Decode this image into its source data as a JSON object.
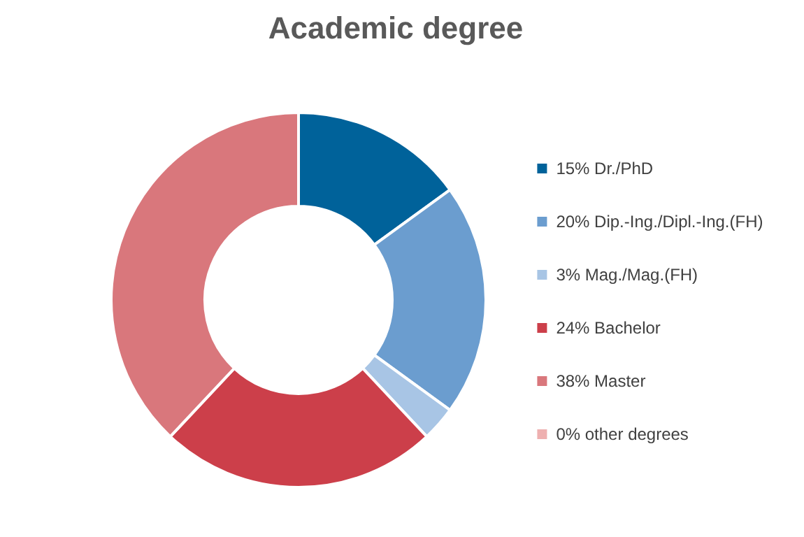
{
  "chart_data": {
    "type": "donut",
    "title": "Academic degree",
    "categories": [
      "Dr./PhD",
      "Dip.-Ing./Dipl.-Ing.(FH)",
      "Mag./Mag.(FH)",
      "Bachelor",
      "Master",
      "other degrees"
    ],
    "values": [
      15,
      20,
      3,
      24,
      38,
      0
    ],
    "value_labels": [
      "15%",
      "20%",
      "3%",
      "24%",
      "38%",
      "0%"
    ],
    "colors": [
      "#00629a",
      "#6b9dcf",
      "#a8c5e5",
      "#cc3f4a",
      "#d9777c",
      "#eeb0b0"
    ],
    "legend": "right"
  }
}
